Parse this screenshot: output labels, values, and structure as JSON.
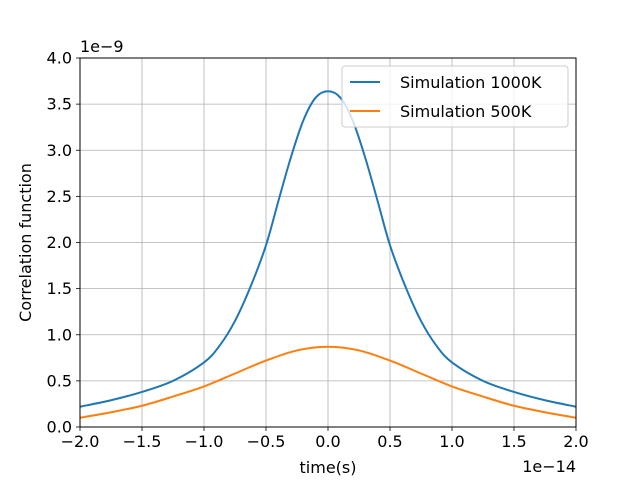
{
  "chart_data": {
    "type": "line",
    "title": "",
    "xlabel": "time(s)",
    "ylabel": "Correlation function",
    "x_offset_label": "1e−14",
    "y_offset_label": "1e−9",
    "xlim": [
      -2.0,
      2.0
    ],
    "ylim": [
      0.0,
      4.0
    ],
    "x_ticks": [
      -2.0,
      -1.5,
      -1.0,
      -0.5,
      0.0,
      0.5,
      1.0,
      1.5,
      2.0
    ],
    "x_tick_labels": [
      "−2.0",
      "−1.5",
      "−1.0",
      "−0.5",
      "0.0",
      "0.5",
      "1.0",
      "1.5",
      "2.0"
    ],
    "y_ticks": [
      0.0,
      0.5,
      1.0,
      1.5,
      2.0,
      2.5,
      3.0,
      3.5,
      4.0
    ],
    "y_tick_labels": [
      "0.0",
      "0.5",
      "1.0",
      "1.5",
      "2.0",
      "2.5",
      "3.0",
      "3.5",
      "4.0"
    ],
    "grid": true,
    "legend_position": "top-right",
    "series": [
      {
        "name": "Simulation 1000K",
        "color": "#1f77b4",
        "x": [
          -2.0,
          -1.75,
          -1.5,
          -1.25,
          -1.0,
          -0.875,
          -0.75,
          -0.625,
          -0.5,
          -0.4,
          -0.3,
          -0.2,
          -0.1,
          0.0,
          0.1,
          0.2,
          0.3,
          0.4,
          0.5,
          0.625,
          0.75,
          0.875,
          1.0,
          1.25,
          1.5,
          1.75,
          2.0
        ],
        "y": [
          0.22,
          0.29,
          0.38,
          0.5,
          0.7,
          0.88,
          1.15,
          1.52,
          1.97,
          2.45,
          2.92,
          3.32,
          3.57,
          3.64,
          3.57,
          3.32,
          2.92,
          2.45,
          1.97,
          1.52,
          1.15,
          0.88,
          0.7,
          0.5,
          0.38,
          0.29,
          0.22
        ]
      },
      {
        "name": "Simulation 500K",
        "color": "#ff7f0e",
        "x": [
          -2.0,
          -1.75,
          -1.5,
          -1.25,
          -1.0,
          -0.75,
          -0.5,
          -0.25,
          0.0,
          0.25,
          0.5,
          0.75,
          1.0,
          1.25,
          1.5,
          1.75,
          2.0
        ],
        "y": [
          0.1,
          0.16,
          0.23,
          0.33,
          0.44,
          0.58,
          0.72,
          0.83,
          0.87,
          0.83,
          0.72,
          0.58,
          0.44,
          0.33,
          0.23,
          0.16,
          0.1
        ]
      }
    ]
  }
}
